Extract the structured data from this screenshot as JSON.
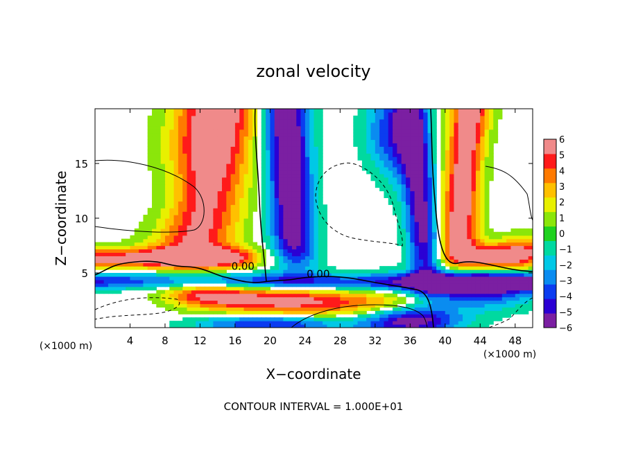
{
  "chart_data": {
    "type": "heatmap",
    "title": "zonal velocity",
    "xlabel": "X−coordinate",
    "ylabel": "Z−coordinate",
    "x_unit": "(×1000 m)",
    "y_unit": "(×1000 m)",
    "xlim": [
      0,
      50
    ],
    "ylim": [
      0,
      20
    ],
    "x_ticks": [
      4,
      8,
      12,
      16,
      20,
      24,
      28,
      32,
      36,
      40,
      44,
      48
    ],
    "x_tick_labels": [
      "4",
      "8",
      "12",
      "16",
      "20",
      "24",
      "28",
      "32",
      "36",
      "40",
      "44",
      "48"
    ],
    "y_ticks": [
      5,
      10,
      15
    ],
    "y_tick_labels": [
      "5",
      "10",
      "15"
    ],
    "colorbar": {
      "min": -6,
      "max": 6,
      "ticks": [
        6,
        5,
        4,
        3,
        2,
        1,
        0,
        -1,
        -2,
        -3,
        -4,
        -5,
        -6
      ],
      "tick_labels": [
        "6",
        "5",
        "4",
        "3",
        "2",
        "1",
        "0",
        "−1",
        "−2",
        "−3",
        "−4",
        "−5",
        "−6"
      ],
      "colors": [
        "#7b1fa2",
        "#2b00d4",
        "#0b3cf0",
        "#0a8cf0",
        "#00c8e6",
        "#00d9a0",
        "#1fd21f",
        "#8be60a",
        "#e8f000",
        "#ffc000",
        "#ff7a00",
        "#ff1a1a",
        "#f08a8a"
      ],
      "position": "right"
    },
    "blank_range": [
      -0.5,
      0.5
    ],
    "contour_labels": [
      {
        "text": "0.00",
        "x": 16.9,
        "z": 5.6
      },
      {
        "text": "0.00",
        "x": 25.5,
        "z": 4.9
      }
    ],
    "field_description": "Zonal velocity (x-z section); positive maxima near x=12 and x=43 aloft and along z~4, negative plumes near x=23 and x=37, weak values elsewhere",
    "footer": "CONTOUR INTERVAL = 1.000E+01",
    "grid": false
  }
}
